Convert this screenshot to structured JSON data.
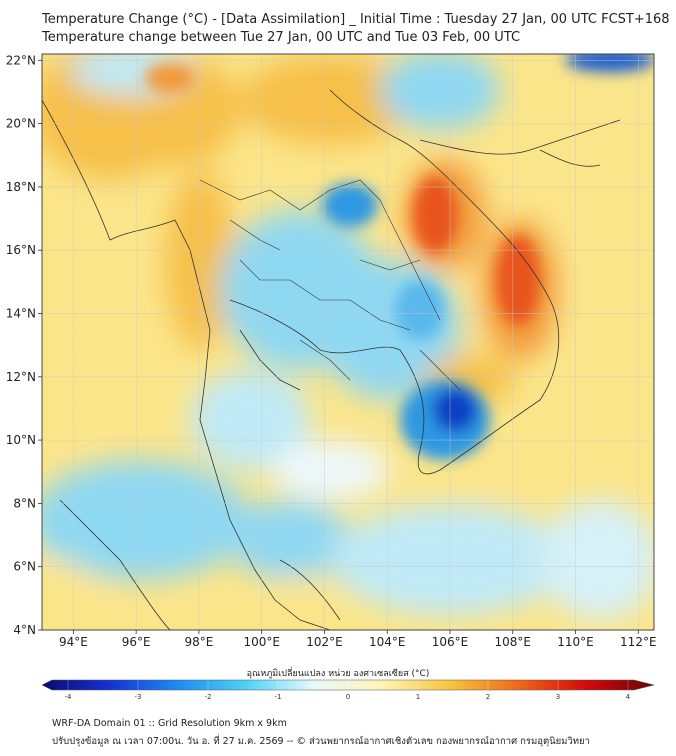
{
  "header": {
    "title_line1": "Temperature Change (°C) - [Data Assimilation] _ Initial Time : Tuesday 27 Jan, 00 UTC FCST+168",
    "title_line2": "Temperature change between Tue 27 Jan, 00 UTC and Tue 03 Feb, 00 UTC"
  },
  "map": {
    "lon_range": [
      93,
      112.5
    ],
    "lat_range": [
      4,
      22.2
    ],
    "lon_ticks": [
      "94°E",
      "96°E",
      "98°E",
      "100°E",
      "102°E",
      "104°E",
      "106°E",
      "108°E",
      "110°E",
      "112°E"
    ],
    "lat_ticks": [
      "22°N",
      "20°N",
      "18°N",
      "16°N",
      "14°N",
      "12°N",
      "10°N",
      "8°N",
      "6°N",
      "4°N"
    ],
    "gridlines": true,
    "field_colors": {
      "strong_warm": "#e8541c",
      "warm": "#f6c04a",
      "mild_warm": "#fbe58a",
      "neutral": "#eef8fb",
      "cool": "#8fd8f2",
      "strong_cool": "#2f98e2",
      "cold_core": "#0f3fc4"
    }
  },
  "colorbar": {
    "title": "อุณหภูมิเปลี่ยนแปลง หน่วย องศาเซลเซียส (°C)",
    "min": -4,
    "max": 4,
    "ticks": [
      "-4",
      "-3",
      "-2",
      "-1",
      "0",
      "1",
      "2",
      "3",
      "4"
    ],
    "color_stops": [
      "#0a0a6e",
      "#1432d2",
      "#1e8cf0",
      "#4fd2f5",
      "#e8f9fc",
      "#fdf5b4",
      "#f7c53c",
      "#ee6a1c",
      "#d20a0a",
      "#6a0505"
    ]
  },
  "footer": {
    "line1": "WRF-DA Domain 01 :: Grid Resolution 9km x 9km",
    "line2": "ปรับปรุงข้อมูล ณ เวลา 07:00น. วัน อ. ที่ 27 ม.ค. 2569 -- © ส่วนพยากรณ์อากาศเชิงตัวเลข กองพยากรณ์อากาศ กรมอุตุนิยมวิทยา"
  }
}
